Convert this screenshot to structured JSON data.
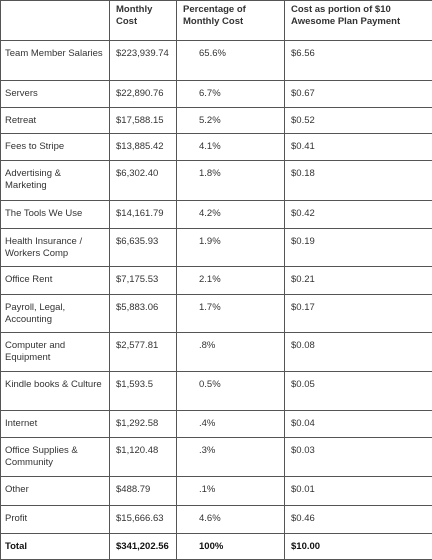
{
  "table": {
    "header": [
      "",
      "Monthly Cost",
      "Percentage of Monthly Cost",
      "Cost as portion of $10 Awesome Plan Payment"
    ],
    "rows": [
      [
        "Team Member Salaries",
        "$223,939.74",
        "65.6%",
        "$6.56"
      ],
      [
        "Servers",
        "$22,890.76",
        "6.7%",
        "$0.67"
      ],
      [
        "Retreat",
        "$17,588.15",
        "5.2%",
        "$0.52"
      ],
      [
        "Fees to Stripe",
        "$13,885.42",
        "4.1%",
        "$0.41"
      ],
      [
        "Advertising & Marketing",
        "$6,302.40",
        "1.8%",
        "$0.18"
      ],
      [
        "The Tools We Use",
        "$14,161.79",
        "4.2%",
        "$0.42"
      ],
      [
        "Health Insurance / Workers Comp",
        "$6,635.93",
        "1.9%",
        "$0.19"
      ],
      [
        "Office Rent",
        "$7,175.53",
        "2.1%",
        "$0.21"
      ],
      [
        "Payroll, Legal, Accounting",
        "$5,883.06",
        "1.7%",
        "$0.17"
      ],
      [
        "Computer and Equipment",
        "$2,577.81",
        ".8%",
        "$0.08"
      ],
      [
        "Kindle books & Culture",
        "$1,593.5",
        "0.5%",
        "$0.05"
      ],
      [
        "Internet",
        "$1,292.58",
        ".4%",
        "$0.04"
      ],
      [
        "Office Supplies & Community",
        "$1,120.48",
        ".3%",
        "$0.03"
      ],
      [
        "Other",
        "$488.79",
        ".1%",
        "$0.01"
      ],
      [
        "Profit",
        "$15,666.63",
        "4.6%",
        "$0.46"
      ],
      [
        "Total",
        "$341,202.56",
        "100%",
        "$10.00"
      ]
    ]
  }
}
